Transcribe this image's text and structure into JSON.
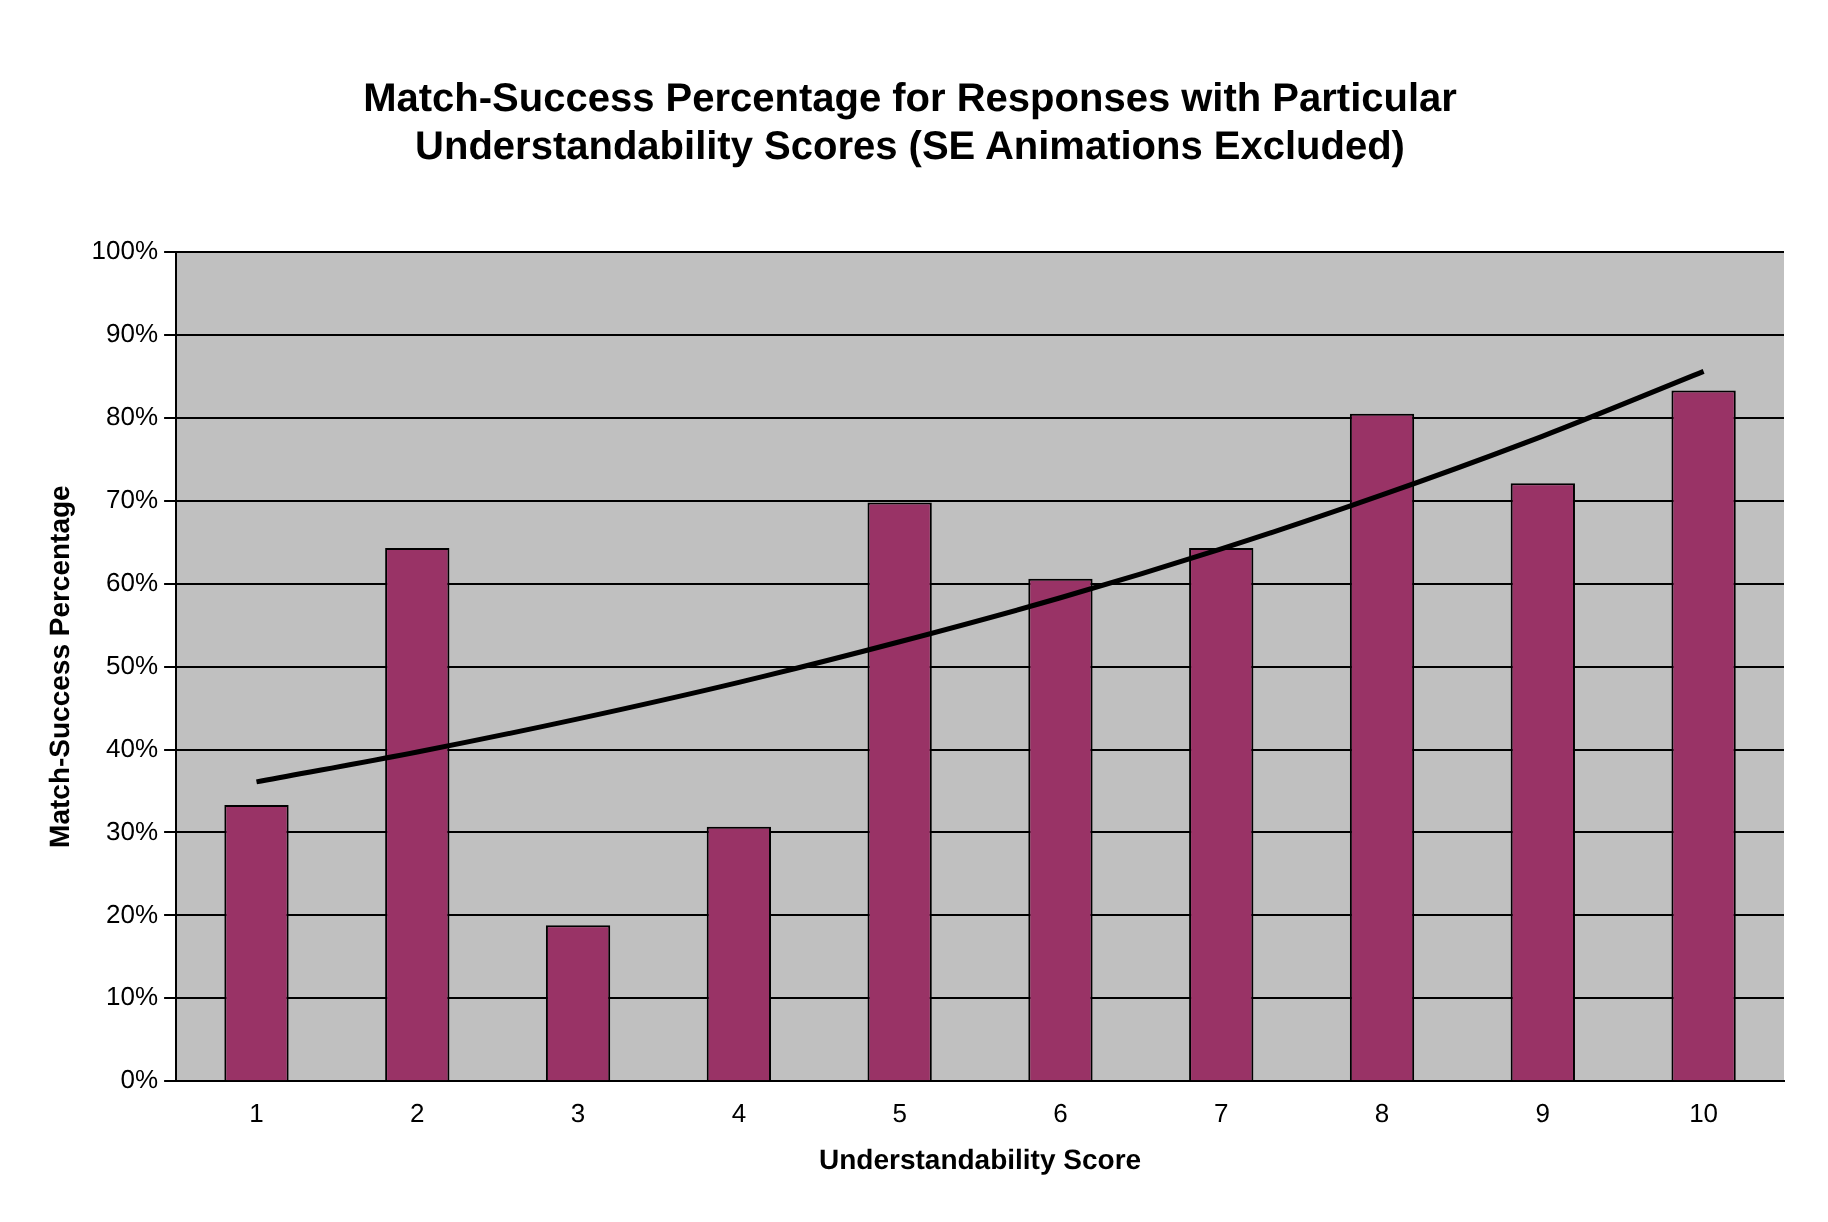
{
  "chart_data": {
    "type": "bar",
    "title": [
      "Match-Success Percentage for Responses with Particular",
      "Understandability Scores (SE Animations Excluded)"
    ],
    "xlabel": "Understandability Score",
    "ylabel": "Match-Success Percentage",
    "categories": [
      "1",
      "2",
      "3",
      "4",
      "5",
      "6",
      "7",
      "8",
      "9",
      "10"
    ],
    "series": [
      {
        "color": "#993366",
        "values": [
          33.3,
          64.3,
          18.8,
          30.7,
          69.8,
          60.6,
          64.3,
          80.5,
          72.1,
          83.3
        ]
      },
      {
        "type": "line",
        "color": "#000000",
        "values": [
          36.1,
          39.7,
          43.7,
          48.1,
          53.0,
          58.3,
          64.2,
          70.7,
          77.8,
          85.6
        ]
      }
    ],
    "ylim": [
      0,
      100
    ],
    "yticks": [
      {
        "value": 0,
        "label": "0%"
      },
      {
        "value": 10,
        "label": "10%"
      },
      {
        "value": 20,
        "label": "20%"
      },
      {
        "value": 30,
        "label": "30%"
      },
      {
        "value": 40,
        "label": "40%"
      },
      {
        "value": 50,
        "label": "50%"
      },
      {
        "value": 60,
        "label": "60%"
      },
      {
        "value": 70,
        "label": "70%"
      },
      {
        "value": 80,
        "label": "80%"
      },
      {
        "value": 90,
        "label": "90%"
      },
      {
        "value": 100,
        "label": "100%"
      }
    ],
    "grid": "y",
    "legend": false,
    "marker": "none",
    "line_style": "solid"
  }
}
